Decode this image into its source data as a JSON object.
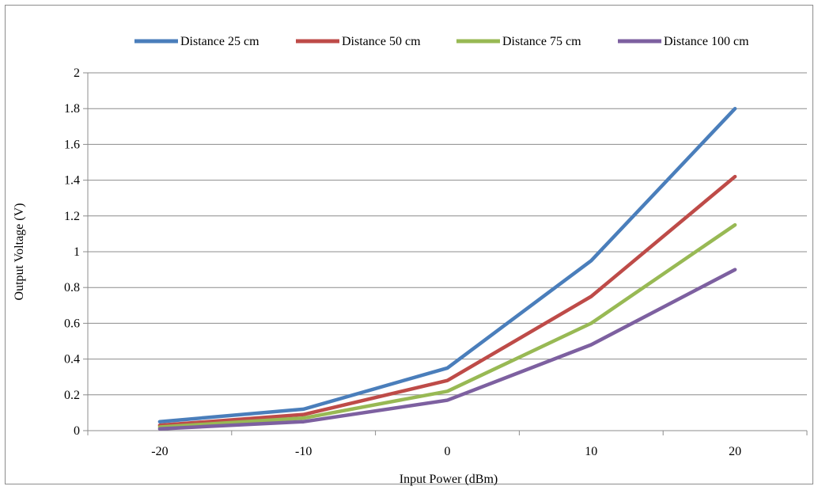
{
  "chart_data": {
    "type": "line",
    "title": "",
    "xlabel": "Input Power (dBm)",
    "ylabel": "Output Voltage (V)",
    "categories": [
      "-20",
      "-10",
      "0",
      "10",
      "20"
    ],
    "ylim": [
      0,
      2
    ],
    "yticks": [
      "0",
      "0.2",
      "0.4",
      "0.6",
      "0.8",
      "1",
      "1.2",
      "1.4",
      "1.6",
      "1.8",
      "2"
    ],
    "grid": "horizontal",
    "legend_position": "top",
    "series": [
      {
        "name": "Distance 25 cm",
        "color": "#4a7ebb",
        "values": [
          0.05,
          0.12,
          0.35,
          0.95,
          1.8
        ]
      },
      {
        "name": "Distance 50 cm",
        "color": "#be4b48",
        "values": [
          0.03,
          0.09,
          0.28,
          0.75,
          1.42
        ]
      },
      {
        "name": "Distance 75 cm",
        "color": "#98b954",
        "values": [
          0.02,
          0.07,
          0.22,
          0.6,
          1.15
        ]
      },
      {
        "name": "Distance 100 cm",
        "color": "#7d60a0",
        "values": [
          0.01,
          0.05,
          0.17,
          0.48,
          0.9
        ]
      }
    ]
  }
}
